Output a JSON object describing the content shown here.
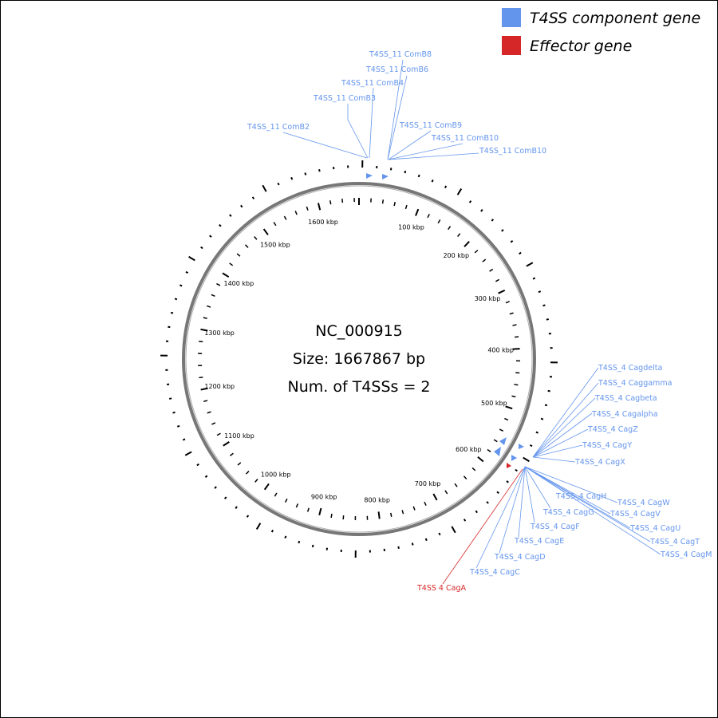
{
  "legend": [
    {
      "label": "T4SS component gene",
      "color": "#6495ed"
    },
    {
      "label": "Effector gene",
      "color": "#d62728"
    }
  ],
  "center": {
    "accession": "NC_000915",
    "size": "Size: 1667867 bp",
    "count": "Num. of T4SSs = 2"
  },
  "scale_labels": [
    "100 kbp",
    "200 kbp",
    "300 kbp",
    "400 kbp",
    "500 kbp",
    "600 kbp",
    "700 kbp",
    "800 kbp",
    "900 kbp",
    "1000 kbp",
    "1100 kbp",
    "1200 kbp",
    "1300 kbp",
    "1400 kbp",
    "1500 kbp",
    "1600 kbp"
  ],
  "genes": [
    {
      "label": "T4SS_11 ComB8",
      "color": "#6495ed"
    },
    {
      "label": "T4SS_11 ComB6",
      "color": "#6495ed"
    },
    {
      "label": "T4SS_11 ComB4",
      "color": "#6495ed"
    },
    {
      "label": "T4SS_11 ComB3",
      "color": "#6495ed"
    },
    {
      "label": "T4SS_11 ComB2",
      "color": "#6495ed"
    },
    {
      "label": "T4SS_11 ComB9",
      "color": "#6495ed"
    },
    {
      "label": "T4SS_11 ComB10",
      "color": "#6495ed"
    },
    {
      "label": "T4SS_11 ComB10",
      "color": "#6495ed"
    },
    {
      "label": "T4SS_4 Cagdelta",
      "color": "#6495ed"
    },
    {
      "label": "T4SS_4 Caggamma",
      "color": "#6495ed"
    },
    {
      "label": "T4SS_4 Cagbeta",
      "color": "#6495ed"
    },
    {
      "label": "T4SS_4 Cagalpha",
      "color": "#6495ed"
    },
    {
      "label": "T4SS_4 CagZ",
      "color": "#6495ed"
    },
    {
      "label": "T4SS_4 CagY",
      "color": "#6495ed"
    },
    {
      "label": "T4SS_4 CagX",
      "color": "#6495ed"
    },
    {
      "label": "T4SS_4 CagH",
      "color": "#6495ed"
    },
    {
      "label": "T4SS_4 CagW",
      "color": "#6495ed"
    },
    {
      "label": "T4SS_4 CagG",
      "color": "#6495ed"
    },
    {
      "label": "T4SS_4 CagV",
      "color": "#6495ed"
    },
    {
      "label": "T4SS_4 CagF",
      "color": "#6495ed"
    },
    {
      "label": "T4SS_4 CagU",
      "color": "#6495ed"
    },
    {
      "label": "T4SS_4 CagE",
      "color": "#6495ed"
    },
    {
      "label": "T4SS_4 CagT",
      "color": "#6495ed"
    },
    {
      "label": "T4SS_4 CagD",
      "color": "#6495ed"
    },
    {
      "label": "T4SS_4 CagM",
      "color": "#6495ed"
    },
    {
      "label": "T4SS_4 CagC",
      "color": "#6495ed"
    },
    {
      "label": "T4SS 4 CagA",
      "color": "#d62728"
    }
  ]
}
